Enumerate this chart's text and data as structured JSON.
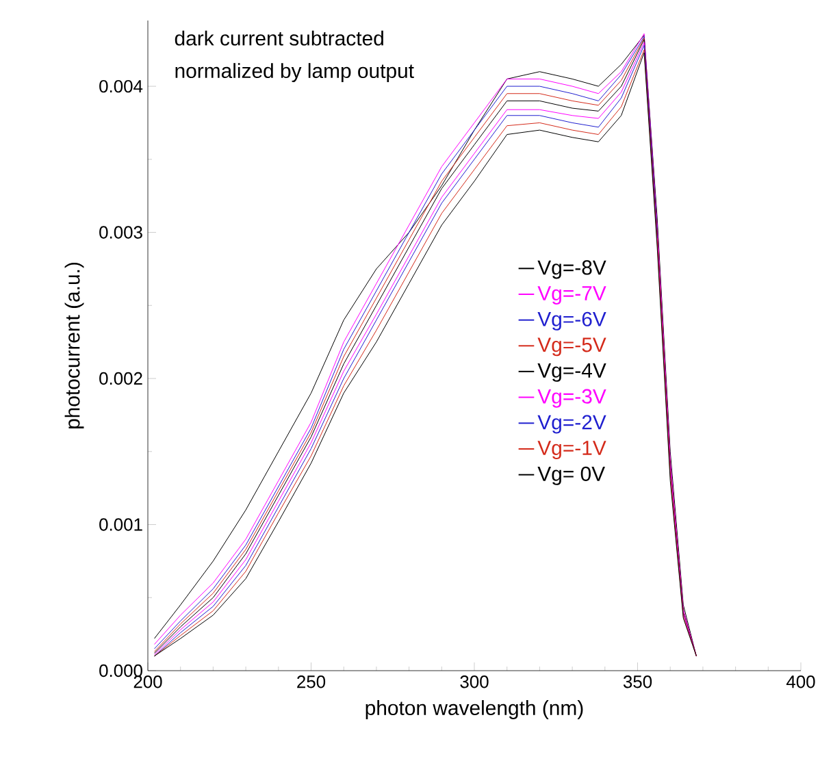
{
  "chart_data": {
    "type": "line",
    "xlabel": "photon wavelength  (nm)",
    "ylabel": "photocurrent  (a.u.)",
    "annotations": [
      "dark current subtracted",
      "normalized by lamp output"
    ],
    "x": [
      202,
      210,
      220,
      230,
      240,
      250,
      260,
      270,
      280,
      290,
      300,
      310,
      320,
      330,
      338,
      345,
      352,
      356,
      360,
      364,
      368
    ],
    "xlim": [
      200,
      400
    ],
    "xticks": [
      200,
      250,
      300,
      350,
      400
    ],
    "ylim": [
      0,
      0.00445
    ],
    "yticks": [
      {
        "value": 0,
        "label": "0.000"
      },
      {
        "value": 0.001,
        "label": "0.001"
      },
      {
        "value": 0.002,
        "label": "0.002"
      },
      {
        "value": 0.003,
        "label": "0.003"
      },
      {
        "value": 0.004,
        "label": "0.004"
      }
    ],
    "legend": "right",
    "grid": false,
    "marker": "none",
    "line_style": "solid",
    "series": [
      {
        "name": "Vg=-8V",
        "color": "#000000",
        "values": [
          0.00022,
          0.00045,
          0.00075,
          0.0011,
          0.0015,
          0.0019,
          0.0024,
          0.00275,
          0.003,
          0.00332,
          0.0037,
          0.00405,
          0.0041,
          0.00405,
          0.004,
          0.00415,
          0.00435,
          0.0031,
          0.0015,
          0.00045,
          0.0001
        ]
      },
      {
        "name": "Vg=-7V",
        "color": "#ff00ff",
        "values": [
          0.00018,
          0.00038,
          0.0006,
          0.0009,
          0.0013,
          0.0017,
          0.00225,
          0.00265,
          0.00305,
          0.00345,
          0.00375,
          0.00405,
          0.00405,
          0.004,
          0.00395,
          0.0041,
          0.00436,
          0.00305,
          0.00145,
          0.00042,
          0.0001
        ]
      },
      {
        "name": "Vg=-6V",
        "color": "#1f1fcf",
        "values": [
          0.00015,
          0.00034,
          0.00056,
          0.00086,
          0.00126,
          0.00166,
          0.0022,
          0.0026,
          0.003,
          0.0034,
          0.0037,
          0.004,
          0.004,
          0.00395,
          0.0039,
          0.00408,
          0.00434,
          0.00302,
          null,
          null,
          null
        ]
      },
      {
        "name": "Vg=-5V",
        "color": "#d42a1a",
        "values": [
          0.00013,
          0.00032,
          0.00053,
          0.00083,
          0.00123,
          0.00163,
          0.00215,
          0.00255,
          0.00295,
          0.00335,
          0.00365,
          0.00395,
          0.00395,
          0.0039,
          0.00387,
          0.00404,
          0.00433,
          0.003,
          0.0014,
          0.0004,
          0.0001
        ]
      },
      {
        "name": "Vg=-4V",
        "color": "#000000",
        "values": [
          0.00012,
          0.0003,
          0.0005,
          0.0008,
          0.0012,
          0.0016,
          0.0021,
          0.0025,
          0.0029,
          0.0033,
          0.0036,
          0.0039,
          0.0039,
          0.00385,
          0.00383,
          0.004,
          0.00432,
          0.003,
          0.0014,
          0.0004,
          0.0001
        ]
      },
      {
        "name": "Vg=-3V",
        "color": "#ff00ff",
        "values": [
          0.00011,
          0.00028,
          0.00047,
          0.00076,
          0.00116,
          0.00156,
          0.00205,
          0.00244,
          0.00284,
          0.00324,
          0.00354,
          0.00384,
          0.00384,
          0.0038,
          0.00378,
          0.00396,
          0.0043,
          0.00298,
          0.00138,
          0.00039,
          0.0001
        ]
      },
      {
        "name": "Vg=-2V",
        "color": "#1f1fcf",
        "values": [
          0.0001,
          0.00026,
          0.00044,
          0.00072,
          0.00112,
          0.00152,
          0.002,
          0.0024,
          0.0028,
          0.0032,
          0.0035,
          0.0038,
          0.0038,
          0.00375,
          0.00372,
          0.00392,
          0.00428,
          0.00296,
          null,
          null,
          null
        ]
      },
      {
        "name": "Vg=-1V",
        "color": "#d42a1a",
        "values": [
          0.0001,
          0.00024,
          0.00041,
          0.00068,
          0.00108,
          0.00147,
          0.00195,
          0.00233,
          0.00273,
          0.00313,
          0.00343,
          0.00373,
          0.00375,
          0.0037,
          0.00367,
          0.00386,
          0.00425,
          0.00294,
          0.00134,
          0.00037,
          0.0001
        ]
      },
      {
        "name": "Vg= 0V",
        "color": "#000000",
        "values": [
          0.0001,
          0.00022,
          0.00038,
          0.00063,
          0.00102,
          0.00142,
          0.0019,
          0.00225,
          0.00265,
          0.00305,
          0.00335,
          0.00367,
          0.0037,
          0.00365,
          0.00362,
          0.0038,
          0.00423,
          0.0029,
          0.0013,
          0.00036,
          0.0001
        ]
      }
    ]
  }
}
